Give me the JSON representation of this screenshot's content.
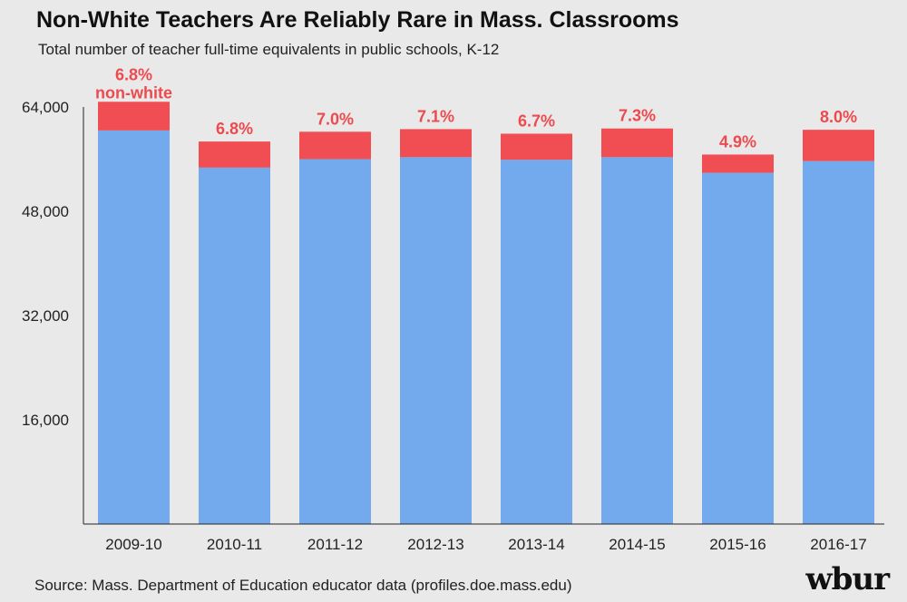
{
  "header": {
    "title": "Non-White Teachers Are Reliably Rare in Mass. Classrooms",
    "subtitle": "Total number of teacher full-time equivalents in public schools, K-12"
  },
  "footer": {
    "source": "Source: Mass. Department of Education educator data (profiles.doe.mass.edu)",
    "logo": "wbur"
  },
  "colors": {
    "white_teachers": "#72aaed",
    "nonwhite_teachers": "#f04e52",
    "label": "#ec4a4e",
    "background": "#e9e9e9"
  },
  "chart_data": {
    "type": "bar",
    "stacked": true,
    "categories": [
      "2009-10",
      "2010-11",
      "2011-12",
      "2012-13",
      "2013-14",
      "2014-15",
      "2015-16",
      "2016-17"
    ],
    "series": [
      {
        "values": [
          60400,
          54700,
          56000,
          56300,
          55900,
          56300,
          53900,
          55700
        ]
      },
      {
        "values": [
          4400,
          4000,
          4200,
          4300,
          4000,
          4400,
          2800,
          4800
        ]
      }
    ],
    "data_labels": [
      "6.8%",
      "6.8%",
      "7.0%",
      "7.1%",
      "6.7%",
      "7.3%",
      "4.9%",
      "8.0%"
    ],
    "first_label_suffix": "non-white",
    "yticks": [
      16000,
      32000,
      48000,
      64000
    ],
    "ytick_labels": [
      "16,000",
      "32,000",
      "48,000",
      "64,000"
    ],
    "ylim": [
      0,
      64000
    ],
    "grid": false,
    "legend": false
  }
}
